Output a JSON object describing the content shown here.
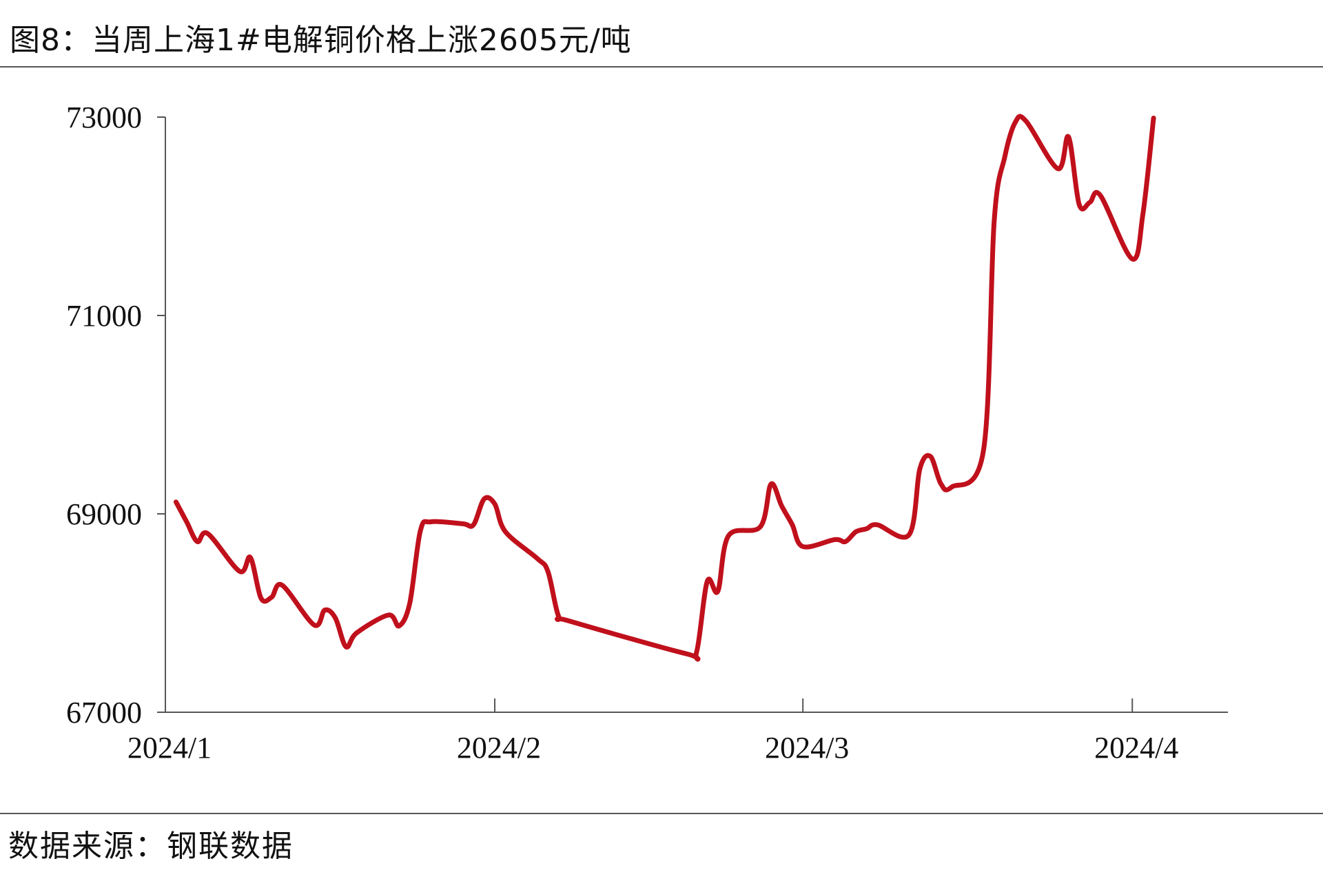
{
  "title": "图8：当周上海1#电解铜价格上涨2605元/吨",
  "source": "数据来源：钢联数据",
  "colors": {
    "line": "#C0101C",
    "axis": "#555555",
    "text": "#111111"
  },
  "chart_data": {
    "type": "line",
    "title": "图8：当周上海1#电解铜价格上涨2605元/吨",
    "xlabel": "",
    "ylabel": "",
    "x_ticks": [
      "2024/1",
      "2024/2",
      "2024/3",
      "2024/4"
    ],
    "y_ticks": [
      "67000",
      "69000",
      "71000",
      "73000"
    ],
    "ylim": [
      67000,
      73000
    ],
    "xlim": [
      "2024-01-01",
      "2024-04-10"
    ],
    "grid": false,
    "legend": "none",
    "series": [
      {
        "x": [
          "2024-01-02",
          "2024-01-03",
          "2024-01-04",
          "2024-01-05",
          "2024-01-08",
          "2024-01-09",
          "2024-01-10",
          "2024-01-11",
          "2024-01-12",
          "2024-01-15",
          "2024-01-16",
          "2024-01-17",
          "2024-01-18",
          "2024-01-19",
          "2024-01-22",
          "2024-01-23",
          "2024-01-24",
          "2024-01-25",
          "2024-01-26",
          "2024-01-29",
          "2024-01-30",
          "2024-01-31",
          "2024-02-01",
          "2024-02-02",
          "2024-02-05",
          "2024-02-06",
          "2024-02-07",
          "2024-02-08",
          "2024-02-19",
          "2024-02-20",
          "2024-02-21",
          "2024-02-22",
          "2024-02-23",
          "2024-02-26",
          "2024-02-27",
          "2024-02-28",
          "2024-02-29",
          "2024-03-01",
          "2024-03-04",
          "2024-03-05",
          "2024-03-06",
          "2024-03-07",
          "2024-03-08",
          "2024-03-11",
          "2024-03-12",
          "2024-03-13",
          "2024-03-14",
          "2024-03-15",
          "2024-03-18",
          "2024-03-19",
          "2024-03-20",
          "2024-03-21",
          "2024-03-22",
          "2024-03-25",
          "2024-03-26",
          "2024-03-27",
          "2024-03-28",
          "2024-03-29",
          "2024-04-01",
          "2024-04-02",
          "2024-04-03"
        ],
        "y": [
          69120,
          68920,
          68720,
          68800,
          68420,
          68560,
          68150,
          68160,
          68280,
          67880,
          68030,
          67950,
          67660,
          67800,
          67980,
          67870,
          68100,
          68830,
          68920,
          68900,
          68890,
          69150,
          69100,
          68820,
          68550,
          68420,
          67970,
          67920,
          67590,
          67610,
          68320,
          68220,
          68780,
          68870,
          69300,
          69080,
          68890,
          68670,
          68740,
          68720,
          68820,
          68850,
          68890,
          68790,
          69450,
          69580,
          69300,
          69270,
          69640,
          71950,
          72600,
          72950,
          72960,
          72480,
          72800,
          72120,
          72140,
          72210,
          71570,
          72020,
          72990
        ]
      }
    ]
  }
}
